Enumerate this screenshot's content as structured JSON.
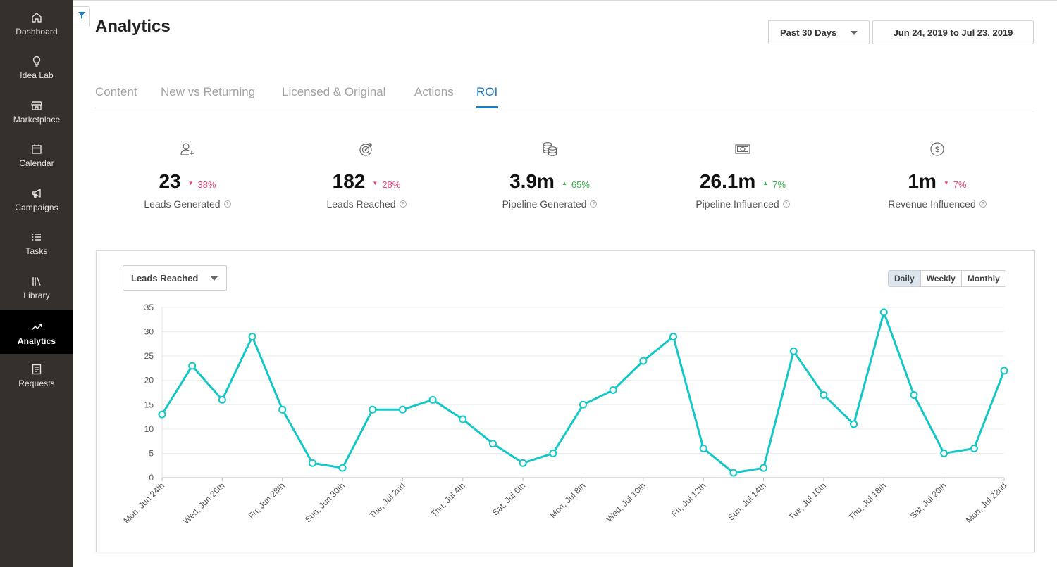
{
  "sidebar": {
    "items": [
      {
        "label": "Dashboard",
        "icon": "home-icon"
      },
      {
        "label": "Idea Lab",
        "icon": "lightbulb-icon"
      },
      {
        "label": "Marketplace",
        "icon": "store-icon"
      },
      {
        "label": "Calendar",
        "icon": "calendar-icon"
      },
      {
        "label": "Campaigns",
        "icon": "megaphone-icon"
      },
      {
        "label": "Tasks",
        "icon": "list-icon"
      },
      {
        "label": "Library",
        "icon": "library-icon"
      },
      {
        "label": "Analytics",
        "icon": "trending-icon",
        "active": true
      },
      {
        "label": "Requests",
        "icon": "document-icon"
      }
    ]
  },
  "header": {
    "title": "Analytics",
    "period": "Past 30 Days",
    "date_range": "Jun 24, 2019 to Jul 23, 2019"
  },
  "tabs": [
    {
      "label": "Content"
    },
    {
      "label": "New vs Returning"
    },
    {
      "label": "Licensed & Original"
    },
    {
      "label": "Actions"
    },
    {
      "label": "ROI",
      "active": true
    }
  ],
  "kpis": [
    {
      "value": "23",
      "delta": "38%",
      "direction": "down",
      "label": "Leads Generated",
      "icon": "add-user-icon"
    },
    {
      "value": "182",
      "delta": "28%",
      "direction": "down",
      "label": "Leads Reached",
      "icon": "target-icon"
    },
    {
      "value": "3.9m",
      "delta": "65%",
      "direction": "up",
      "label": "Pipeline Generated",
      "icon": "coins-icon"
    },
    {
      "value": "26.1m",
      "delta": "7%",
      "direction": "up",
      "label": "Pipeline Influenced",
      "icon": "banknote-icon"
    },
    {
      "value": "1m",
      "delta": "7%",
      "direction": "down",
      "label": "Revenue Influenced",
      "icon": "dollar-icon"
    }
  ],
  "chart_controls": {
    "metric": "Leads Reached",
    "granularity": [
      "Daily",
      "Weekly",
      "Monthly"
    ],
    "selected_granularity": "Daily"
  },
  "colors": {
    "accent": "#1a7cc2",
    "line": "#14c7c7",
    "down": "#e8457a",
    "up": "#35b24a",
    "sidebar": "#35302b"
  },
  "chart_data": {
    "type": "line",
    "title": "",
    "xlabel": "",
    "ylabel": "",
    "ylim": [
      0,
      35
    ],
    "yticks": [
      0,
      5,
      10,
      15,
      20,
      25,
      30,
      35
    ],
    "x": [
      "Mon, Jun 24th",
      "Tue, Jun 25th",
      "Wed, Jun 26th",
      "Thu, Jun 27th",
      "Fri, Jun 28th",
      "Sat, Jun 29th",
      "Sun, Jun 30th",
      "Mon, Jul 1st",
      "Tue, Jul 2nd",
      "Wed, Jul 3rd",
      "Thu, Jul 4th",
      "Fri, Jul 5th",
      "Sat, Jul 6th",
      "Sun, Jul 7th",
      "Mon, Jul 8th",
      "Tue, Jul 9th",
      "Wed, Jul 10th",
      "Thu, Jul 11th",
      "Fri, Jul 12th",
      "Sat, Jul 13th",
      "Sun, Jul 14th",
      "Mon, Jul 15th",
      "Tue, Jul 16th",
      "Wed, Jul 17th",
      "Thu, Jul 18th",
      "Fri, Jul 19th",
      "Sat, Jul 20th",
      "Sun, Jul 21st",
      "Mon, Jul 22nd"
    ],
    "xtick_labels": [
      "Mon, Jun 24th",
      "Wed, Jun 26th",
      "Fri, Jun 28th",
      "Sun, Jun 30th",
      "Tue, Jul 2nd",
      "Thu, Jul 4th",
      "Sat, Jul 6th",
      "Mon, Jul 8th",
      "Wed, Jul 10th",
      "Fri, Jul 12th",
      "Sun, Jul 14th",
      "Tue, Jul 16th",
      "Thu, Jul 18th",
      "Sat, Jul 20th",
      "Mon, Jul 22nd"
    ],
    "series": [
      {
        "values": [
          13,
          23,
          16,
          29,
          14,
          3,
          2,
          14,
          14,
          16,
          12,
          7,
          3,
          5,
          15,
          18,
          24,
          29,
          6,
          1,
          2,
          26,
          17,
          11,
          34,
          17,
          5,
          6,
          22
        ]
      }
    ],
    "grid": true,
    "legend": "none"
  }
}
